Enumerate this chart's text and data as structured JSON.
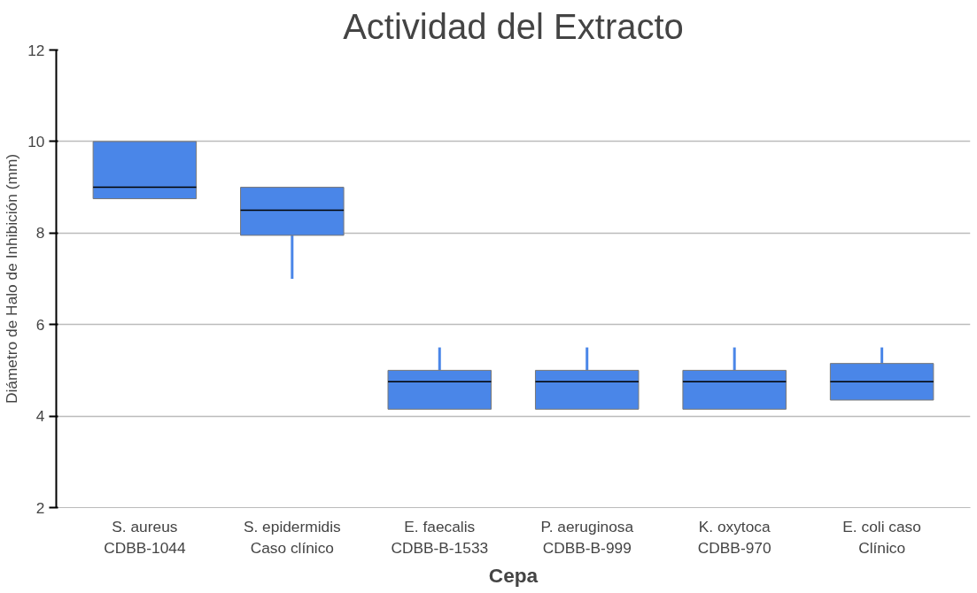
{
  "chart_data": {
    "type": "box",
    "title": "Actividad del Extracto",
    "xlabel": "Cepa",
    "ylabel": "Diámetro de Halo de Inhibición (mm)",
    "categories": [
      "S. aureus\nCDBB-1044",
      "S. epidermidis\nCaso clínico",
      "E. faecalis\nCDBB-B-1533",
      "P. aeruginosa\nCDBB-B-999",
      "K. oxytoca\nCDBB-970",
      "E. coli caso\nClínico"
    ],
    "boxes": [
      {
        "low": 8.75,
        "q1": 8.75,
        "median": 9,
        "q3": 10,
        "high": 10
      },
      {
        "low": 7,
        "q1": 7.95,
        "median": 8.5,
        "q3": 9,
        "high": 9
      },
      {
        "low": 4.15,
        "q1": 4.15,
        "median": 4.75,
        "q3": 5,
        "high": 5.5
      },
      {
        "low": 4.15,
        "q1": 4.15,
        "median": 4.75,
        "q3": 5,
        "high": 5.5
      },
      {
        "low": 4.15,
        "q1": 4.15,
        "median": 4.75,
        "q3": 5,
        "high": 5.5
      },
      {
        "low": 4.35,
        "q1": 4.35,
        "median": 4.75,
        "q3": 5.15,
        "high": 5.5
      }
    ],
    "color": "#4a86e8",
    "ylim": [
      2,
      12
    ],
    "yticks": [
      2,
      4,
      6,
      8,
      10,
      12
    ],
    "grid": "y"
  }
}
